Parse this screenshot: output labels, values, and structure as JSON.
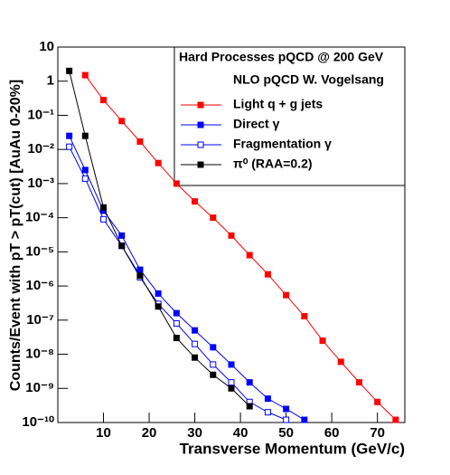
{
  "chart_data": {
    "type": "line",
    "xlabel": "Transverse Momentum (GeV/c)",
    "ylabel": "Counts/Event with pT > pT(cut) [AuAu 0-20%]",
    "legend_title": [
      "Hard Processes pQCD @ 200 GeV",
      "NLO pQCD W. Vogelsang"
    ],
    "xlim": [
      0,
      76
    ],
    "xticks": [
      10,
      20,
      30,
      40,
      50,
      60,
      70
    ],
    "ylim": [
      1e-10,
      10
    ],
    "log_y": true,
    "yticks": [
      {
        "value": 1e-10,
        "label": "10⁻¹⁰"
      },
      {
        "value": 1e-09,
        "label": "10⁻⁹"
      },
      {
        "value": 1e-08,
        "label": "10⁻⁸"
      },
      {
        "value": 1e-07,
        "label": "10⁻⁷"
      },
      {
        "value": 1e-06,
        "label": "10⁻⁶"
      },
      {
        "value": 1e-05,
        "label": "10⁻⁵"
      },
      {
        "value": 0.0001,
        "label": "10⁻⁴"
      },
      {
        "value": 0.001,
        "label": "10⁻³"
      },
      {
        "value": 0.01,
        "label": "10⁻²"
      },
      {
        "value": 0.1,
        "label": "10⁻¹"
      },
      1,
      10
    ],
    "series": [
      {
        "name": "Light q + g jets",
        "color": "#ff0000",
        "marker": "filled",
        "x": [
          6,
          10,
          14,
          18,
          22,
          26,
          30,
          34,
          38,
          42,
          46,
          50,
          54,
          58,
          62,
          66,
          70,
          74
        ],
        "values": [
          1.5,
          0.28,
          0.068,
          0.017,
          0.004,
          0.001,
          0.0003,
          0.0001,
          3e-05,
          8e-06,
          2.2e-06,
          5.4e-07,
          1.3e-07,
          2.5e-08,
          6e-09,
          1.5e-09,
          4e-10,
          1.2e-10
        ]
      },
      {
        "name": "Direct γ",
        "color": "#0000ff",
        "marker": "filled",
        "x": [
          2.5,
          6,
          10,
          14,
          18,
          22,
          26,
          30,
          34,
          38,
          42,
          46,
          50,
          54
        ],
        "values": [
          0.025,
          0.0025,
          0.00016,
          3e-05,
          3e-06,
          6e-07,
          1.6e-07,
          5e-08,
          1.6e-08,
          5e-09,
          1.5e-09,
          5e-10,
          2.5e-10,
          1.2e-10
        ]
      },
      {
        "name": "Fragmentation γ",
        "color": "#0000ff",
        "marker": "open",
        "x": [
          2.5,
          6,
          10,
          14,
          18,
          22,
          26,
          30,
          34,
          38,
          42,
          46,
          50
        ],
        "values": [
          0.012,
          0.0014,
          9e-05,
          1.5e-05,
          1.8e-06,
          3e-07,
          8e-08,
          2e-08,
          5e-09,
          1.5e-09,
          4e-10,
          2e-10,
          1.2e-10
        ]
      },
      {
        "name": "π⁰ (RAA=0.2)",
        "color": "#000000",
        "marker": "filled",
        "x": [
          2.5,
          6,
          10,
          14,
          18,
          22,
          26,
          30,
          34,
          38,
          42
        ],
        "values": [
          2,
          0.025,
          0.0002,
          1.5e-05,
          2e-06,
          2.5e-07,
          3e-08,
          8e-09,
          2.5e-09,
          1e-09,
          3e-10
        ]
      }
    ]
  }
}
